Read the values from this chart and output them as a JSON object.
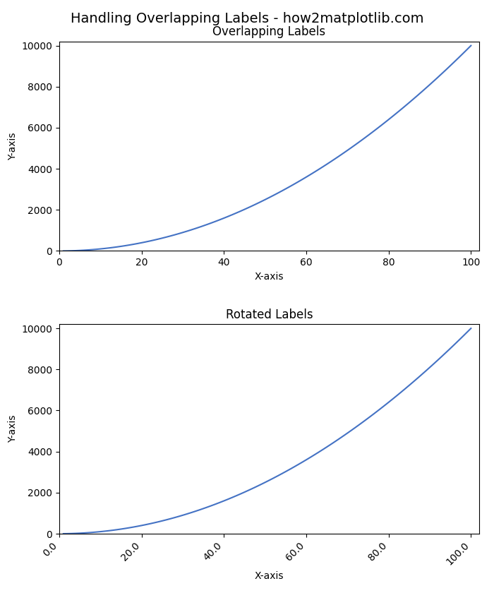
{
  "title": "Handling Overlapping Labels - how2matplotlib.com",
  "subplot1_title": "Overlapping Labels",
  "subplot2_title": "Rotated Labels",
  "xlabel": "X-axis",
  "ylabel": "Y-axis",
  "x_data_start": 1,
  "x_data_end": 100,
  "n_points": 100,
  "line_color": "#4472c4",
  "line_width": 1.5,
  "fig_width": 7.0,
  "fig_height": 8.4,
  "title_fontsize": 14,
  "subtitle_fontsize": 12,
  "tick_rotation": 45,
  "xlim": [
    0,
    102
  ],
  "ylim": [
    0,
    10200
  ],
  "xticks": [
    0,
    20,
    40,
    60,
    80,
    100
  ],
  "yticks": [
    0,
    2000,
    4000,
    6000,
    8000,
    10000
  ],
  "xtick_labels_rotated": [
    "0.0",
    "20.0",
    "40.0",
    "60.0",
    "80.0",
    "100.0"
  ]
}
